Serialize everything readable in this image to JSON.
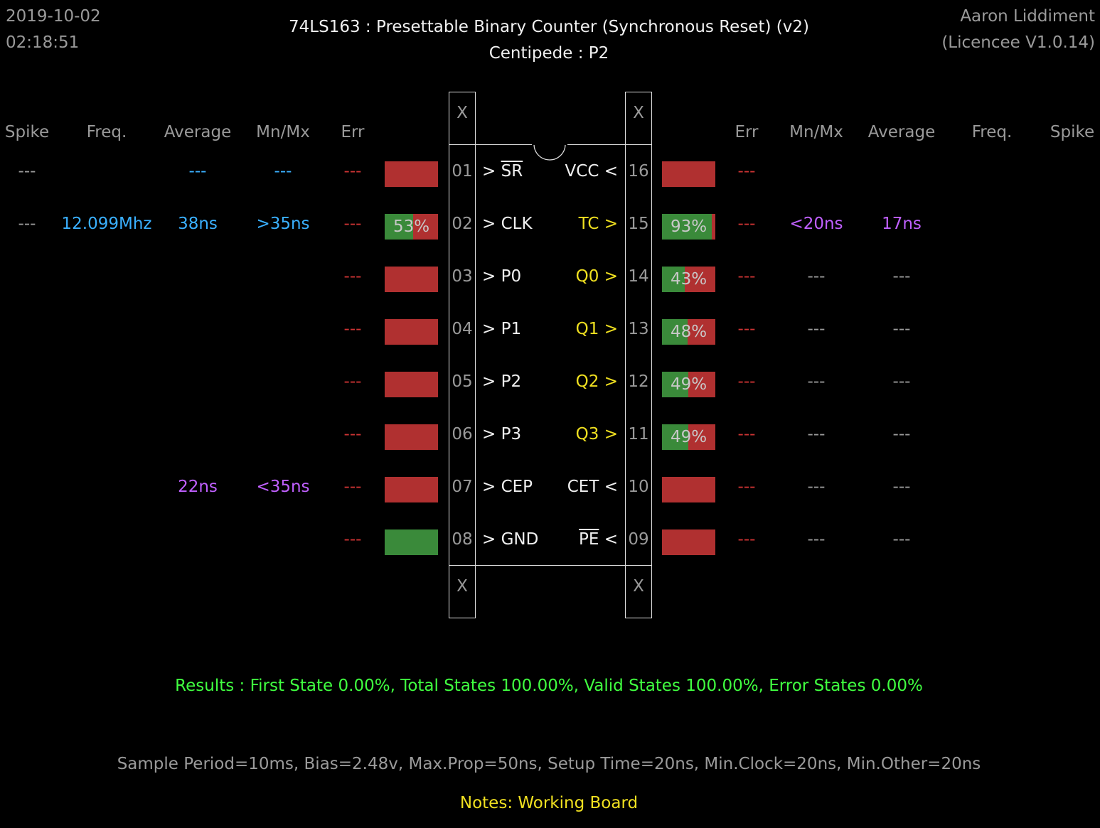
{
  "header": {
    "date": "2019-10-02",
    "time": "02:18:51",
    "title": "74LS163  :  Presettable Binary Counter (Synchronous Reset) (v2)",
    "subtitle": "Centipede : P2",
    "author": "Aaron Liddiment",
    "licence": "(Licencee V1.0.14)"
  },
  "columns": {
    "left": [
      "Spike",
      "Freq.",
      "Average",
      "Mn/Mx",
      "Err"
    ],
    "right": [
      "Err",
      "Mn/Mx",
      "Average",
      "Freq.",
      "Spike"
    ]
  },
  "chip": {
    "corner_top_left": "X",
    "corner_top_right": "X",
    "corner_bottom_left": "X",
    "corner_bottom_right": "X"
  },
  "left_pins": [
    {
      "num": "01",
      "label": "> ",
      "name": "SR",
      "overline": true,
      "spike": "---",
      "freq": "",
      "avg": "---",
      "mnmx": "---",
      "err": "---",
      "bar": 0,
      "pct": ""
    },
    {
      "num": "02",
      "label": "> ",
      "name": "CLK",
      "overline": false,
      "spike": "---",
      "freq": "12.099Mhz",
      "avg": "38ns",
      "mnmx": ">35ns",
      "err": "---",
      "bar": 53,
      "pct": "53%"
    },
    {
      "num": "03",
      "label": "> ",
      "name": "P0",
      "overline": false,
      "spike": "",
      "freq": "",
      "avg": "",
      "mnmx": "",
      "err": "---",
      "bar": 0,
      "pct": ""
    },
    {
      "num": "04",
      "label": "> ",
      "name": "P1",
      "overline": false,
      "spike": "",
      "freq": "",
      "avg": "",
      "mnmx": "",
      "err": "---",
      "bar": 0,
      "pct": ""
    },
    {
      "num": "05",
      "label": "> ",
      "name": "P2",
      "overline": false,
      "spike": "",
      "freq": "",
      "avg": "",
      "mnmx": "",
      "err": "---",
      "bar": 0,
      "pct": ""
    },
    {
      "num": "06",
      "label": "> ",
      "name": "P3",
      "overline": false,
      "spike": "",
      "freq": "",
      "avg": "",
      "mnmx": "",
      "err": "---",
      "bar": 0,
      "pct": ""
    },
    {
      "num": "07",
      "label": "> ",
      "name": "CEP",
      "overline": false,
      "spike": "",
      "freq": "",
      "avg": "22ns",
      "mnmx": "<35ns",
      "err": "---",
      "bar": 0,
      "pct": ""
    },
    {
      "num": "08",
      "label": "> ",
      "name": "GND",
      "overline": false,
      "spike": "",
      "freq": "",
      "avg": "",
      "mnmx": "",
      "err": "---",
      "bar": 100,
      "pct": ""
    }
  ],
  "right_pins": [
    {
      "num": "16",
      "name": "VCC",
      "suffix": " <",
      "overline": false,
      "output": false,
      "err": "---",
      "mnmx": "",
      "avg": "",
      "bar": 0,
      "pct": ""
    },
    {
      "num": "15",
      "name": "TC",
      "suffix": " >",
      "overline": false,
      "output": true,
      "err": "---",
      "mnmx": "<20ns",
      "avg": "17ns",
      "bar": 93,
      "pct": "93%"
    },
    {
      "num": "14",
      "name": "Q0",
      "suffix": " >",
      "overline": false,
      "output": true,
      "err": "---",
      "mnmx": "---",
      "avg": "---",
      "bar": 43,
      "pct": "43%"
    },
    {
      "num": "13",
      "name": "Q1",
      "suffix": " >",
      "overline": false,
      "output": true,
      "err": "---",
      "mnmx": "---",
      "avg": "---",
      "bar": 48,
      "pct": "48%"
    },
    {
      "num": "12",
      "name": "Q2",
      "suffix": " >",
      "overline": false,
      "output": true,
      "err": "---",
      "mnmx": "---",
      "avg": "---",
      "bar": 49,
      "pct": "49%"
    },
    {
      "num": "11",
      "name": "Q3",
      "suffix": " >",
      "overline": false,
      "output": true,
      "err": "---",
      "mnmx": "---",
      "avg": "---",
      "bar": 49,
      "pct": "49%"
    },
    {
      "num": "10",
      "name": "CET",
      "suffix": " <",
      "overline": false,
      "output": false,
      "err": "---",
      "mnmx": "---",
      "avg": "---",
      "bar": 0,
      "pct": ""
    },
    {
      "num": "09",
      "name": "PE",
      "suffix": " <",
      "overline": true,
      "output": false,
      "err": "---",
      "mnmx": "---",
      "avg": "---",
      "bar": 0,
      "pct": ""
    }
  ],
  "footer": {
    "results": "Results  :  First State 0.00%,  Total States 100.00%,  Valid States 100.00%,  Error States 0.00%",
    "params": "Sample Period=10ms,  Bias=2.48v,  Max.Prop=50ns,  Setup Time=20ns,  Min.Clock=20ns,  Min.Other=20ns",
    "notes": "Notes:  Working Board"
  },
  "colors": {
    "bar_low": "#b03030",
    "bar_high": "#3a8a3a",
    "freq_blue": "#3ab0ff",
    "prop_purple": "#c060ff",
    "output_yellow": "#f0e020",
    "result_green": "#40ff40"
  }
}
